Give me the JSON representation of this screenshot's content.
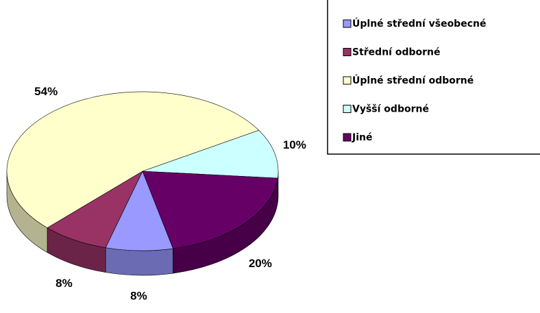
{
  "chart_data": {
    "type": "pie3d",
    "categories": [
      "Úplné střední všeobecné",
      "Střední odborné",
      "Úplné střední odborné",
      "Vyšší odborné",
      "Jiné"
    ],
    "values": [
      8,
      8,
      54,
      10,
      20
    ],
    "value_labels": [
      "8%",
      "8%",
      "54%",
      "10%",
      "20%"
    ],
    "colors": [
      "#9999ff",
      "#993366",
      "#ffffcc",
      "#ccffff",
      "#660066"
    ],
    "legend": "right"
  }
}
